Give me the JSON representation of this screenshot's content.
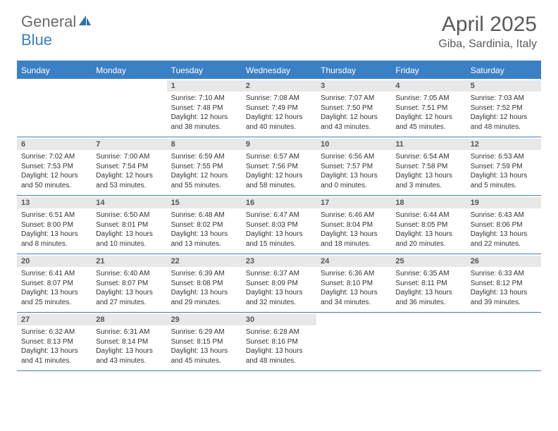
{
  "logo": {
    "word1": "General",
    "word2": "Blue"
  },
  "title": "April 2025",
  "location": "Giba, Sardinia, Italy",
  "accent_color": "#3b7fc4",
  "gray_text": "#5a5a5a",
  "daynum_bg": "#e8e8e8",
  "day_headers": [
    "Sunday",
    "Monday",
    "Tuesday",
    "Wednesday",
    "Thursday",
    "Friday",
    "Saturday"
  ],
  "weeks": [
    [
      null,
      null,
      {
        "n": "1",
        "sr": "Sunrise: 7:10 AM",
        "ss": "Sunset: 7:48 PM",
        "dl": "Daylight: 12 hours and 38 minutes."
      },
      {
        "n": "2",
        "sr": "Sunrise: 7:08 AM",
        "ss": "Sunset: 7:49 PM",
        "dl": "Daylight: 12 hours and 40 minutes."
      },
      {
        "n": "3",
        "sr": "Sunrise: 7:07 AM",
        "ss": "Sunset: 7:50 PM",
        "dl": "Daylight: 12 hours and 43 minutes."
      },
      {
        "n": "4",
        "sr": "Sunrise: 7:05 AM",
        "ss": "Sunset: 7:51 PM",
        "dl": "Daylight: 12 hours and 45 minutes."
      },
      {
        "n": "5",
        "sr": "Sunrise: 7:03 AM",
        "ss": "Sunset: 7:52 PM",
        "dl": "Daylight: 12 hours and 48 minutes."
      }
    ],
    [
      {
        "n": "6",
        "sr": "Sunrise: 7:02 AM",
        "ss": "Sunset: 7:53 PM",
        "dl": "Daylight: 12 hours and 50 minutes."
      },
      {
        "n": "7",
        "sr": "Sunrise: 7:00 AM",
        "ss": "Sunset: 7:54 PM",
        "dl": "Daylight: 12 hours and 53 minutes."
      },
      {
        "n": "8",
        "sr": "Sunrise: 6:59 AM",
        "ss": "Sunset: 7:55 PM",
        "dl": "Daylight: 12 hours and 55 minutes."
      },
      {
        "n": "9",
        "sr": "Sunrise: 6:57 AM",
        "ss": "Sunset: 7:56 PM",
        "dl": "Daylight: 12 hours and 58 minutes."
      },
      {
        "n": "10",
        "sr": "Sunrise: 6:56 AM",
        "ss": "Sunset: 7:57 PM",
        "dl": "Daylight: 13 hours and 0 minutes."
      },
      {
        "n": "11",
        "sr": "Sunrise: 6:54 AM",
        "ss": "Sunset: 7:58 PM",
        "dl": "Daylight: 13 hours and 3 minutes."
      },
      {
        "n": "12",
        "sr": "Sunrise: 6:53 AM",
        "ss": "Sunset: 7:59 PM",
        "dl": "Daylight: 13 hours and 5 minutes."
      }
    ],
    [
      {
        "n": "13",
        "sr": "Sunrise: 6:51 AM",
        "ss": "Sunset: 8:00 PM",
        "dl": "Daylight: 13 hours and 8 minutes."
      },
      {
        "n": "14",
        "sr": "Sunrise: 6:50 AM",
        "ss": "Sunset: 8:01 PM",
        "dl": "Daylight: 13 hours and 10 minutes."
      },
      {
        "n": "15",
        "sr": "Sunrise: 6:48 AM",
        "ss": "Sunset: 8:02 PM",
        "dl": "Daylight: 13 hours and 13 minutes."
      },
      {
        "n": "16",
        "sr": "Sunrise: 6:47 AM",
        "ss": "Sunset: 8:03 PM",
        "dl": "Daylight: 13 hours and 15 minutes."
      },
      {
        "n": "17",
        "sr": "Sunrise: 6:46 AM",
        "ss": "Sunset: 8:04 PM",
        "dl": "Daylight: 13 hours and 18 minutes."
      },
      {
        "n": "18",
        "sr": "Sunrise: 6:44 AM",
        "ss": "Sunset: 8:05 PM",
        "dl": "Daylight: 13 hours and 20 minutes."
      },
      {
        "n": "19",
        "sr": "Sunrise: 6:43 AM",
        "ss": "Sunset: 8:06 PM",
        "dl": "Daylight: 13 hours and 22 minutes."
      }
    ],
    [
      {
        "n": "20",
        "sr": "Sunrise: 6:41 AM",
        "ss": "Sunset: 8:07 PM",
        "dl": "Daylight: 13 hours and 25 minutes."
      },
      {
        "n": "21",
        "sr": "Sunrise: 6:40 AM",
        "ss": "Sunset: 8:07 PM",
        "dl": "Daylight: 13 hours and 27 minutes."
      },
      {
        "n": "22",
        "sr": "Sunrise: 6:39 AM",
        "ss": "Sunset: 8:08 PM",
        "dl": "Daylight: 13 hours and 29 minutes."
      },
      {
        "n": "23",
        "sr": "Sunrise: 6:37 AM",
        "ss": "Sunset: 8:09 PM",
        "dl": "Daylight: 13 hours and 32 minutes."
      },
      {
        "n": "24",
        "sr": "Sunrise: 6:36 AM",
        "ss": "Sunset: 8:10 PM",
        "dl": "Daylight: 13 hours and 34 minutes."
      },
      {
        "n": "25",
        "sr": "Sunrise: 6:35 AM",
        "ss": "Sunset: 8:11 PM",
        "dl": "Daylight: 13 hours and 36 minutes."
      },
      {
        "n": "26",
        "sr": "Sunrise: 6:33 AM",
        "ss": "Sunset: 8:12 PM",
        "dl": "Daylight: 13 hours and 39 minutes."
      }
    ],
    [
      {
        "n": "27",
        "sr": "Sunrise: 6:32 AM",
        "ss": "Sunset: 8:13 PM",
        "dl": "Daylight: 13 hours and 41 minutes."
      },
      {
        "n": "28",
        "sr": "Sunrise: 6:31 AM",
        "ss": "Sunset: 8:14 PM",
        "dl": "Daylight: 13 hours and 43 minutes."
      },
      {
        "n": "29",
        "sr": "Sunrise: 6:29 AM",
        "ss": "Sunset: 8:15 PM",
        "dl": "Daylight: 13 hours and 45 minutes."
      },
      {
        "n": "30",
        "sr": "Sunrise: 6:28 AM",
        "ss": "Sunset: 8:16 PM",
        "dl": "Daylight: 13 hours and 48 minutes."
      },
      null,
      null,
      null
    ]
  ]
}
